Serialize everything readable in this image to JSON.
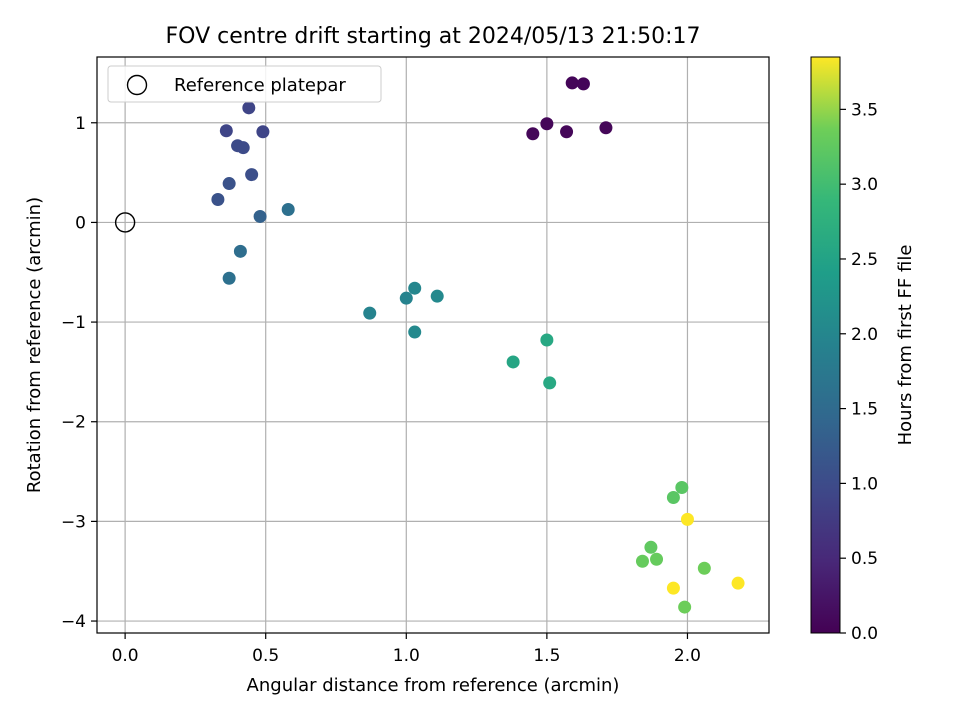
{
  "chart_data": {
    "type": "scatter",
    "title": "FOV centre drift starting at 2024/05/13 21:50:17",
    "xlabel": "Angular distance from reference (arcmin)",
    "ylabel": "Rotation from reference (arcmin)",
    "xlim": [
      -0.1,
      2.29
    ],
    "ylim": [
      -4.12,
      1.66
    ],
    "xticks": [
      0.0,
      0.5,
      1.0,
      1.5,
      2.0
    ],
    "xtick_labels": [
      "0.0",
      "0.5",
      "1.0",
      "1.5",
      "2.0"
    ],
    "yticks": [
      -4,
      -3,
      -2,
      -1,
      0,
      1
    ],
    "ytick_labels": [
      "−4",
      "−3",
      "−2",
      "−1",
      "0",
      "1"
    ],
    "grid": true,
    "legend": {
      "placement": "upper-left",
      "entries": [
        "Reference platepar"
      ]
    },
    "reference_point": {
      "x": 0.0,
      "y": 0.0,
      "label": "Reference platepar"
    },
    "colorbar": {
      "label": "Hours from first FF file",
      "range": [
        0.0,
        3.85
      ],
      "ticks": [
        0.0,
        0.5,
        1.0,
        1.5,
        2.0,
        2.5,
        3.0,
        3.5
      ],
      "tick_labels": [
        "0.0",
        "0.5",
        "1.0",
        "1.5",
        "2.0",
        "2.5",
        "3.0",
        "3.5"
      ],
      "colormap": "viridis"
    },
    "series": [
      {
        "x": [
          1.59,
          1.63,
          1.45,
          1.5,
          1.57,
          1.71,
          0.36,
          0.44,
          0.49,
          0.4,
          0.42,
          0.45,
          0.37,
          0.33,
          0.48,
          0.58,
          0.41,
          0.37,
          0.87,
          1.0,
          1.03,
          1.11,
          1.03,
          1.38,
          1.5,
          1.51,
          1.98,
          1.95,
          2.0,
          1.87,
          1.84,
          1.89,
          1.95,
          2.06,
          1.99,
          2.18
        ],
        "y": [
          1.4,
          1.39,
          0.89,
          0.99,
          0.91,
          0.95,
          0.92,
          1.15,
          0.91,
          0.77,
          0.75,
          0.48,
          0.39,
          0.23,
          0.06,
          0.13,
          -0.29,
          -0.56,
          -0.91,
          -0.76,
          -0.66,
          -0.74,
          -1.1,
          -1.4,
          -1.18,
          -1.61,
          -2.66,
          -2.76,
          -2.98,
          -3.26,
          -3.4,
          -3.38,
          -3.67,
          -3.47,
          -3.86,
          -3.62
        ],
        "c": [
          0.05,
          0.05,
          0.07,
          0.07,
          0.07,
          0.07,
          0.9,
          0.9,
          0.9,
          1.0,
          1.0,
          1.05,
          1.1,
          1.1,
          1.35,
          1.6,
          1.55,
          1.6,
          1.95,
          1.95,
          2.0,
          2.05,
          2.05,
          2.55,
          2.6,
          2.6,
          3.2,
          3.2,
          3.85,
          3.25,
          3.3,
          3.3,
          3.85,
          3.35,
          3.35,
          3.85
        ]
      }
    ]
  }
}
